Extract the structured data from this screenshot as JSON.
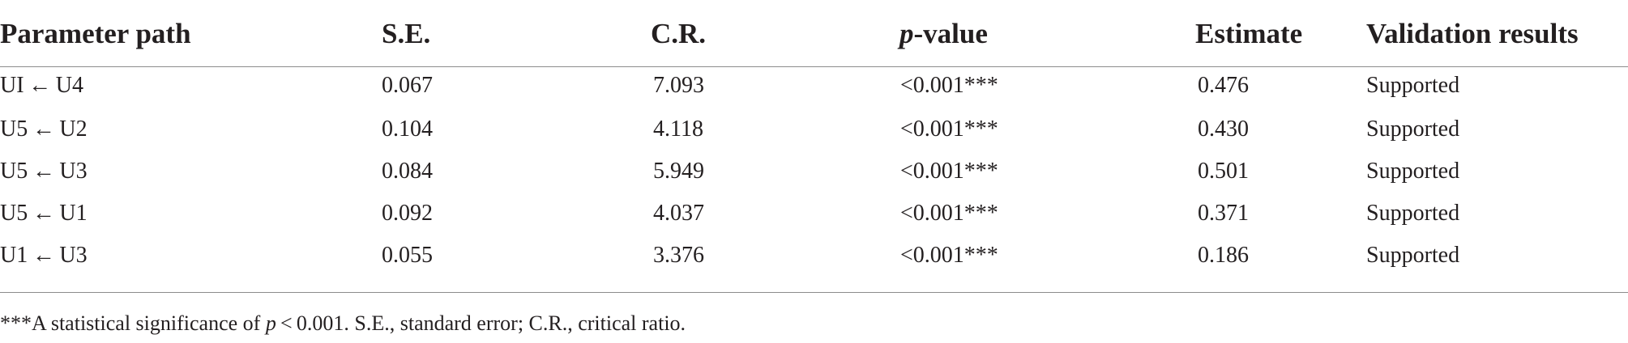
{
  "table": {
    "headers": {
      "path": "Parameter path",
      "se": "S.E.",
      "cr": "C.R.",
      "p_italic": "p",
      "p_rest": "-value",
      "estimate": "Estimate",
      "validation": "Validation results"
    },
    "rows": [
      {
        "path": "UI ← U4",
        "se": "0.067",
        "cr": "7.093",
        "p": "<0.001***",
        "estimate": "0.476",
        "validation": "Supported"
      },
      {
        "path": "U5 ← U2",
        "se": "0.104",
        "cr": "4.118",
        "p": "<0.001***",
        "estimate": "0.430",
        "validation": "Supported"
      },
      {
        "path": "U5 ← U3",
        "se": "0.084",
        "cr": "5.949",
        "p": "<0.001***",
        "estimate": "0.501",
        "validation": "Supported"
      },
      {
        "path": "U5 ← U1",
        "se": "0.092",
        "cr": "4.037",
        "p": "<0.001***",
        "estimate": "0.371",
        "validation": "Supported"
      },
      {
        "path": "U1 ← U3",
        "se": "0.055",
        "cr": "3.376",
        "p": "<0.001***",
        "estimate": "0.186",
        "validation": "Supported"
      }
    ]
  },
  "footnote": {
    "prefix": "***A statistical significance of ",
    "p_italic": "p",
    "suffix": " < 0.001. S.E., standard error; C.R., critical ratio."
  }
}
